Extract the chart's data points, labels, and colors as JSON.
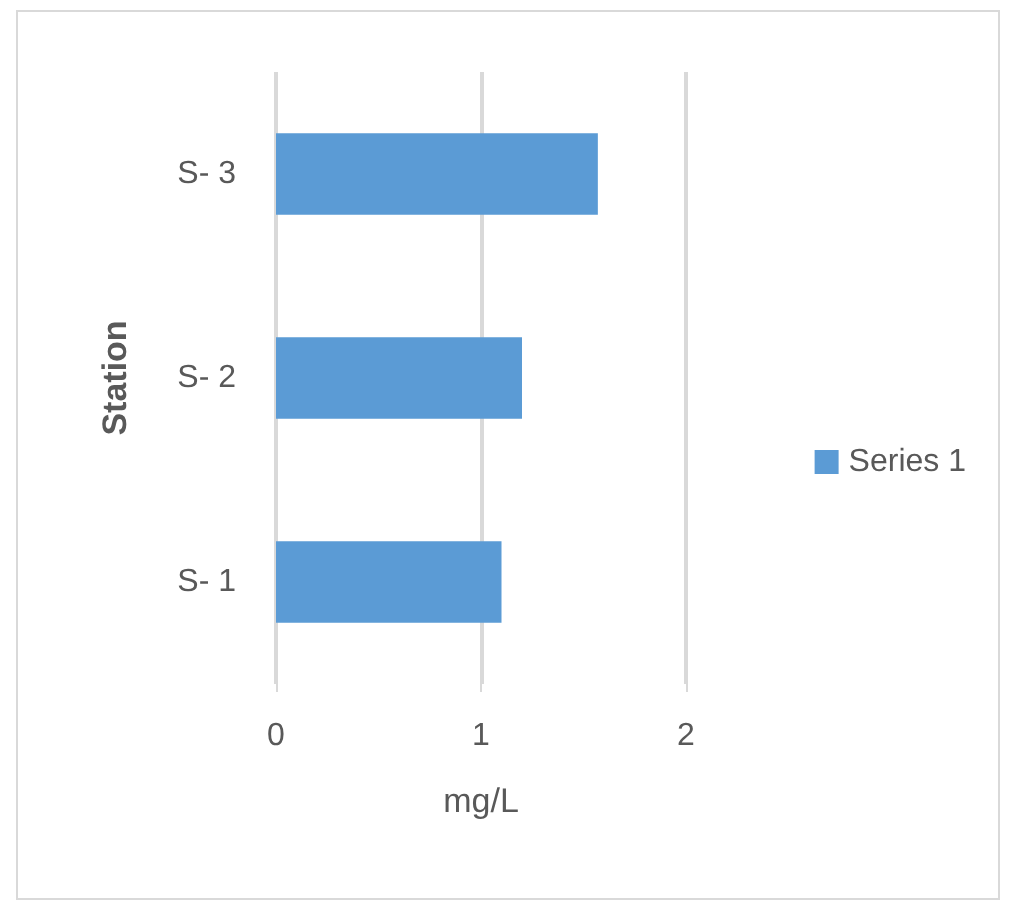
{
  "chart_data": {
    "type": "bar",
    "orientation": "horizontal",
    "categories": [
      "S- 3",
      "S- 2",
      "S- 1"
    ],
    "series": [
      {
        "name": "Series 1",
        "color": "#5b9bd5",
        "values": [
          1.57,
          1.2,
          1.1
        ]
      }
    ],
    "xlabel": "mg/L",
    "ylabel": "Station",
    "xlim": [
      0,
      2
    ],
    "xticks": [
      0,
      1,
      2
    ],
    "grid": "x",
    "legend": "right"
  }
}
